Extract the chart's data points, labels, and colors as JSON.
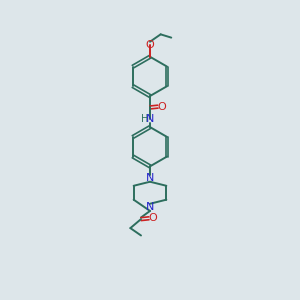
{
  "background_color": "#dde6ea",
  "bond_color": "#2d6e5e",
  "n_color": "#2222cc",
  "o_color": "#cc2222",
  "figsize": [
    3.0,
    3.0
  ],
  "dpi": 100,
  "xlim": [
    0,
    10
  ],
  "ylim": [
    0,
    18
  ]
}
